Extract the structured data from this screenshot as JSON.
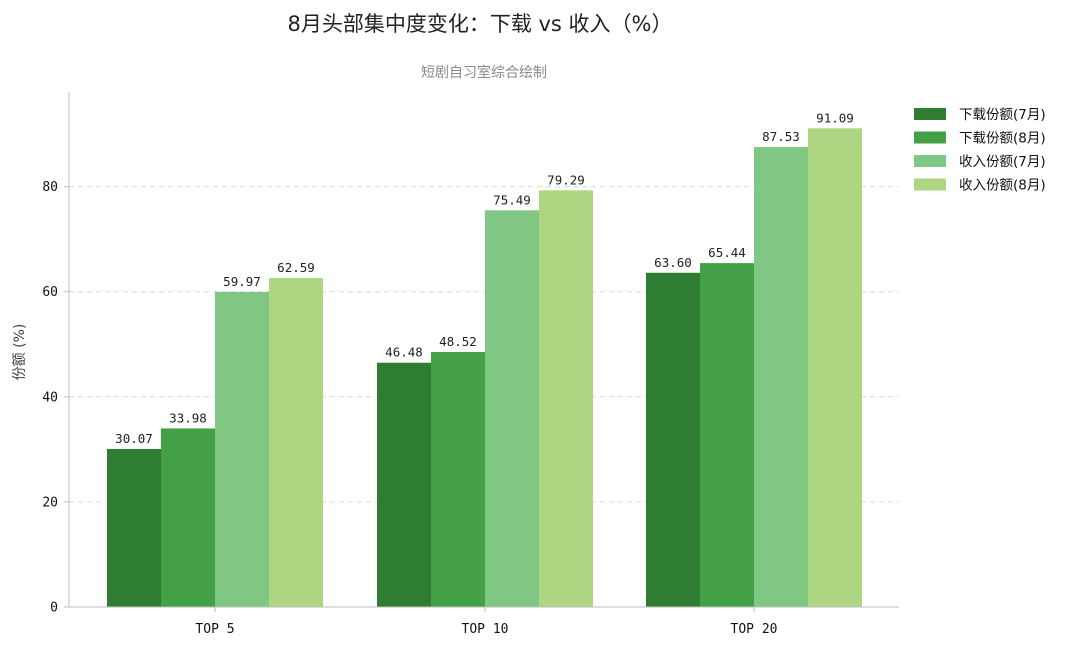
{
  "chart_data": {
    "type": "bar",
    "title": "8月头部集中度变化：下载 vs 收入（%）",
    "subtitle": "短剧自习室综合绘制",
    "xlabel": "",
    "ylabel": "份额 (%)",
    "ylim": [
      0,
      98
    ],
    "yticks": [
      0,
      20,
      40,
      60,
      80
    ],
    "grid": "y-dashed",
    "legend_position": "top-right",
    "categories": [
      "TOP 5",
      "TOP 10",
      "TOP 20"
    ],
    "series": [
      {
        "name": "下载份额(7月)",
        "color": "#2e7d32",
        "values": [
          30.07,
          46.48,
          63.6
        ]
      },
      {
        "name": "下载份额(8月)",
        "color": "#43a047",
        "values": [
          33.98,
          48.52,
          65.44
        ]
      },
      {
        "name": "收入份额(7月)",
        "color": "#81c784",
        "values": [
          59.97,
          75.49,
          87.53
        ]
      },
      {
        "name": "收入份额(8月)",
        "color": "#aed581",
        "values": [
          62.59,
          79.29,
          91.09
        ]
      }
    ]
  }
}
